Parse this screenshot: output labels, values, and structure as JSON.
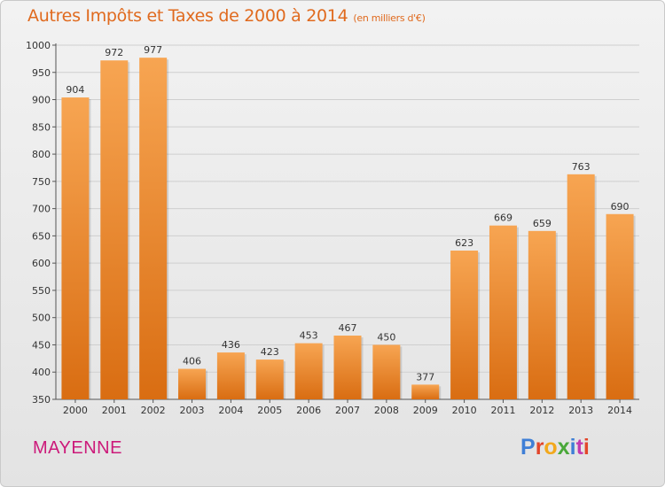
{
  "header": {
    "title": "Autres Impôts et Taxes de 2000 à 2014",
    "unit": "(en milliers d'€)"
  },
  "footer": {
    "commune": "MAYENNE",
    "brand": "Proxiti",
    "brand_colors": [
      "#3f7fd6",
      "#e2462b",
      "#f2a81c",
      "#4aa83a",
      "#3f7fd6",
      "#c23bb0",
      "#e2462b"
    ]
  },
  "colors": {
    "accent": "#e06a1e",
    "bar_top": "#f7a552",
    "bar_bottom": "#d96d12",
    "commune": "#cc1a7a"
  },
  "chart_data": {
    "type": "bar",
    "title": "Autres Impôts et Taxes de 2000 à 2014",
    "subtitle": "(en milliers d'€)",
    "categories": [
      "2000",
      "2001",
      "2002",
      "2003",
      "2004",
      "2005",
      "2006",
      "2007",
      "2008",
      "2009",
      "2010",
      "2011",
      "2012",
      "2013",
      "2014"
    ],
    "values": [
      904,
      972,
      977,
      406,
      436,
      423,
      453,
      467,
      450,
      377,
      623,
      669,
      659,
      763,
      690
    ],
    "ylim": [
      350,
      1000
    ],
    "yticks": [
      350,
      400,
      450,
      500,
      550,
      600,
      650,
      700,
      750,
      800,
      850,
      900,
      950,
      1000
    ],
    "grid": true,
    "legend": "none"
  }
}
